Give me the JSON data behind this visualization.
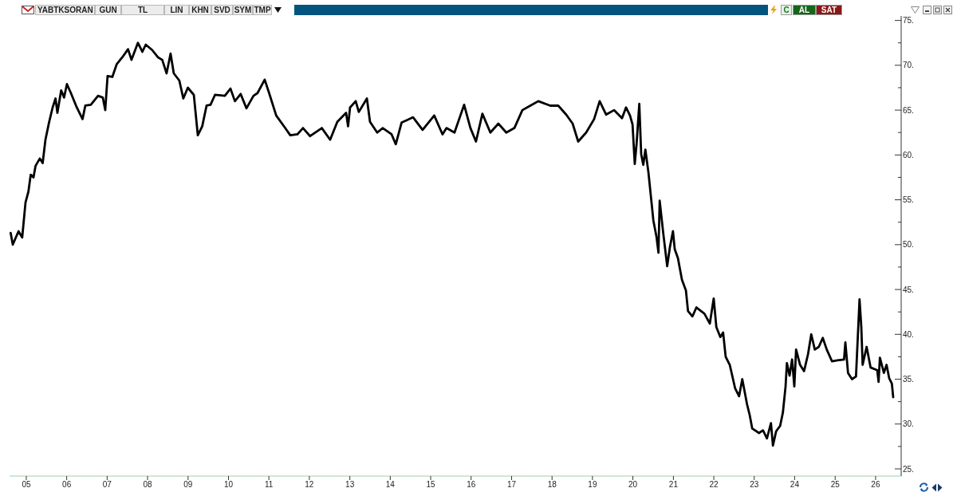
{
  "chart_data": {
    "type": "line",
    "title": "YABTKSORAN",
    "annotations": [
      "GUN",
      "TL",
      "LIN",
      "KHN",
      "SVD",
      "SYM",
      "TMP",
      "C",
      "AL",
      "SAT"
    ],
    "x": [
      "2004-08-13",
      "2004-09-01",
      "2004-10-23",
      "2004-11-25",
      "2004-12-25",
      "2005-01-20",
      "2005-02-10",
      "2005-03-07",
      "2005-03-26",
      "2005-05-03",
      "2005-05-29",
      "2005-06-23",
      "2005-07-25",
      "2005-08-27",
      "2005-09-22",
      "2005-10-09",
      "2005-11-12",
      "2005-12-08",
      "2006-01-03",
      "2006-02-08",
      "2006-04-02",
      "2006-05-24",
      "2006-06-18",
      "2006-08-07",
      "2006-10-11",
      "2006-11-23",
      "2006-12-15",
      "2007-01-05",
      "2007-02-17",
      "2007-03-28",
      "2007-05-19",
      "2007-07-09",
      "2007-08-09",
      "2007-10-06",
      "2007-11-15",
      "2007-12-16",
      "2008-02-12",
      "2008-04-03",
      "2008-05-13",
      "2008-06-21",
      "2008-07-27",
      "2008-08-25",
      "2008-10-14",
      "2008-11-19",
      "2008-12-30",
      "2009-02-22",
      "2009-03-30",
      "2009-05-09",
      "2009-06-17",
      "2009-07-23",
      "2009-09-01",
      "2009-11-29",
      "2010-01-19",
      "2010-02-28",
      "2010-04-21",
      "2010-06-12",
      "2010-08-15",
      "2010-09-20",
      "2010-11-24",
      "2011-01-03",
      "2011-03-08",
      "2011-05-23",
      "2011-07-13",
      "2011-09-15",
      "2011-11-05",
      "2012-01-08",
      "2012-04-23",
      "2012-07-07",
      "2012-09-10",
      "2012-11-28",
      "2012-12-16",
      "2013-01-03",
      "2013-02-23",
      "2013-03-23",
      "2013-06-04",
      "2013-07-02",
      "2013-09-05",
      "2013-10-25",
      "2014-01-13",
      "2014-02-20",
      "2014-04-13",
      "2014-07-26",
      "2014-10-20",
      "2015-02-02",
      "2015-04-18",
      "2015-05-24",
      "2015-08-04",
      "2015-10-30",
      "2015-12-26",
      "2016-02-14",
      "2016-04-12",
      "2016-06-23",
      "2016-09-03",
      "2016-11-14",
      "2017-01-26",
      "2017-04-08",
      "2017-06-19",
      "2017-08-30",
      "2017-12-16",
      "2018-02-26",
      "2018-05-09",
      "2018-07-06",
      "2018-08-25",
      "2018-11-05",
      "2019-01-16",
      "2019-03-07",
      "2019-05-04",
      "2019-07-15",
      "2019-09-25",
      "2019-10-31",
      "2019-12-06",
      "2019-12-29",
      "2020-01-18",
      "2020-02-04",
      "2020-02-28",
      "2020-03-16",
      "2020-04-04",
      "2020-04-23",
      "2020-05-21",
      "2020-06-15",
      "2020-07-04",
      "2020-08-01",
      "2020-08-19",
      "2020-08-30",
      "2020-10-01",
      "2020-11-06",
      "2020-11-30",
      "2020-12-28",
      "2021-01-13",
      "2021-02-11",
      "2021-03-19",
      "2021-04-24",
      "2021-05-13",
      "2021-06-22",
      "2021-07-28",
      "2021-10-08",
      "2021-11-26",
      "2021-12-31",
      "2022-01-24",
      "2022-03-01",
      "2022-03-26",
      "2022-04-18",
      "2022-05-25",
      "2022-07-12",
      "2022-08-17",
      "2022-09-15",
      "2022-10-28",
      "2022-11-21",
      "2022-12-14",
      "2023-02-13",
      "2023-03-21",
      "2023-04-26",
      "2023-06-01",
      "2023-06-19",
      "2023-07-18",
      "2023-08-23",
      "2023-09-17",
      "2023-10-11",
      "2023-10-23",
      "2023-11-16",
      "2023-12-09",
      "2023-12-29",
      "2024-01-14",
      "2024-02-19",
      "2024-03-26",
      "2024-05-01",
      "2024-05-30",
      "2024-07-01",
      "2024-08-06",
      "2024-09-11",
      "2024-10-17",
      "2024-12-03",
      "2025-01-21",
      "2025-03-22",
      "2025-04-03",
      "2025-04-27",
      "2025-06-02",
      "2025-07-08",
      "2025-08-09",
      "2025-08-25",
      "2025-09-06",
      "2025-10-12",
      "2025-11-17",
      "2026-01-16",
      "2026-01-28",
      "2026-02-09",
      "2026-03-17",
      "2026-04-10",
      "2026-05-04",
      "2026-05-28",
      "2026-06-09"
    ],
    "values": [
      51.3,
      50.0,
      51.5,
      50.8,
      54.7,
      55.9,
      57.8,
      57.5,
      58.8,
      59.6,
      59.1,
      61.7,
      63.6,
      65.3,
      66.3,
      64.7,
      67.2,
      66.4,
      67.9,
      66.9,
      65.3,
      64.0,
      65.5,
      65.6,
      66.6,
      66.4,
      65.0,
      68.8,
      68.7,
      70.1,
      70.9,
      71.8,
      70.6,
      72.5,
      71.5,
      72.3,
      71.7,
      70.9,
      70.6,
      69.1,
      71.3,
      69.1,
      68.3,
      66.3,
      67.5,
      66.7,
      62.2,
      63.2,
      65.5,
      65.6,
      66.7,
      66.6,
      67.4,
      66.0,
      66.8,
      65.2,
      66.6,
      66.9,
      68.4,
      66.9,
      64.4,
      63.1,
      62.2,
      62.3,
      63.0,
      62.1,
      63.0,
      61.7,
      63.7,
      64.7,
      63.2,
      65.3,
      66.0,
      64.8,
      66.3,
      63.7,
      62.5,
      63.0,
      62.3,
      61.2,
      63.6,
      64.2,
      62.8,
      64.4,
      62.3,
      63.0,
      62.5,
      65.6,
      63.0,
      61.5,
      64.6,
      62.5,
      63.5,
      62.5,
      63.0,
      65.0,
      65.5,
      66.0,
      65.5,
      65.5,
      64.5,
      63.5,
      61.5,
      62.5,
      64.0,
      66.0,
      64.5,
      65.0,
      64.1,
      65.3,
      64.4,
      63.4,
      59.0,
      61.3,
      65.7,
      60.1,
      58.9,
      60.6,
      58.0,
      55.0,
      52.7,
      50.9,
      49.1,
      54.9,
      51.3,
      47.6,
      49.7,
      51.5,
      49.5,
      48.5,
      46.1,
      44.9,
      42.6,
      42.0,
      43.0,
      42.3,
      41.2,
      44.0,
      40.8,
      39.7,
      40.2,
      37.5,
      36.6,
      34.0,
      33.1,
      35.0,
      32.2,
      31.0,
      29.5,
      29.0,
      29.3,
      28.4,
      30.1,
      27.6,
      29.2,
      29.8,
      31.3,
      34.2,
      36.8,
      35.4,
      37.2,
      34.2,
      38.3,
      36.6,
      35.9,
      37.8,
      40.0,
      38.3,
      38.6,
      39.6,
      38.3,
      37.0,
      37.1,
      37.2,
      39.1,
      35.7,
      35.0,
      35.3,
      43.9,
      40.8,
      36.6,
      38.6,
      36.3,
      36.0,
      34.7,
      37.4,
      35.7,
      36.6,
      35.1,
      34.5,
      33.0
    ],
    "color": "#000000",
    "marker": "none",
    "line_style": "solid",
    "xlim": [
      "2004-08-03",
      "2026-08-20"
    ],
    "xticks": [
      {
        "value": "2005",
        "label": "05"
      },
      {
        "value": "2006",
        "label": "06"
      },
      {
        "value": "2007",
        "label": "07"
      },
      {
        "value": "2008",
        "label": "08"
      },
      {
        "value": "2009",
        "label": "09"
      },
      {
        "value": "2010",
        "label": "10"
      },
      {
        "value": "2011",
        "label": "11"
      },
      {
        "value": "2012",
        "label": "12"
      },
      {
        "value": "2013",
        "label": "13"
      },
      {
        "value": "2014",
        "label": "14"
      },
      {
        "value": "2015",
        "label": "15"
      },
      {
        "value": "2016",
        "label": "16"
      },
      {
        "value": "2017",
        "label": "17"
      },
      {
        "value": "2018",
        "label": "18"
      },
      {
        "value": "2019",
        "label": "19"
      },
      {
        "value": "2020",
        "label": "20"
      },
      {
        "value": "2021",
        "label": "21"
      },
      {
        "value": "2022",
        "label": "22"
      },
      {
        "value": "2023",
        "label": "23"
      },
      {
        "value": "2024",
        "label": "24"
      },
      {
        "value": "2025",
        "label": "25"
      },
      {
        "value": "2026",
        "label": "26"
      }
    ],
    "ylim": [
      24.2,
      75.5
    ],
    "yticks": [
      {
        "value": 25,
        "label": "25."
      },
      {
        "value": 27.5,
        "label": null
      },
      {
        "value": 30,
        "label": "30."
      },
      {
        "value": 32.5,
        "label": null
      },
      {
        "value": 35,
        "label": "35."
      },
      {
        "value": 37.5,
        "label": null
      },
      {
        "value": 40,
        "label": "40."
      },
      {
        "value": 42.5,
        "label": null
      },
      {
        "value": 45,
        "label": "45."
      },
      {
        "value": 47.5,
        "label": null
      },
      {
        "value": 50,
        "label": "50."
      },
      {
        "value": 52.5,
        "label": null
      },
      {
        "value": 55,
        "label": "55."
      },
      {
        "value": 57.5,
        "label": null
      },
      {
        "value": 60,
        "label": "60."
      },
      {
        "value": 62.5,
        "label": null
      },
      {
        "value": 65,
        "label": "65."
      },
      {
        "value": 67.5,
        "label": null
      },
      {
        "value": 70,
        "label": "70."
      },
      {
        "value": 72.5,
        "label": null
      },
      {
        "value": 75,
        "label": "75."
      }
    ]
  }
}
